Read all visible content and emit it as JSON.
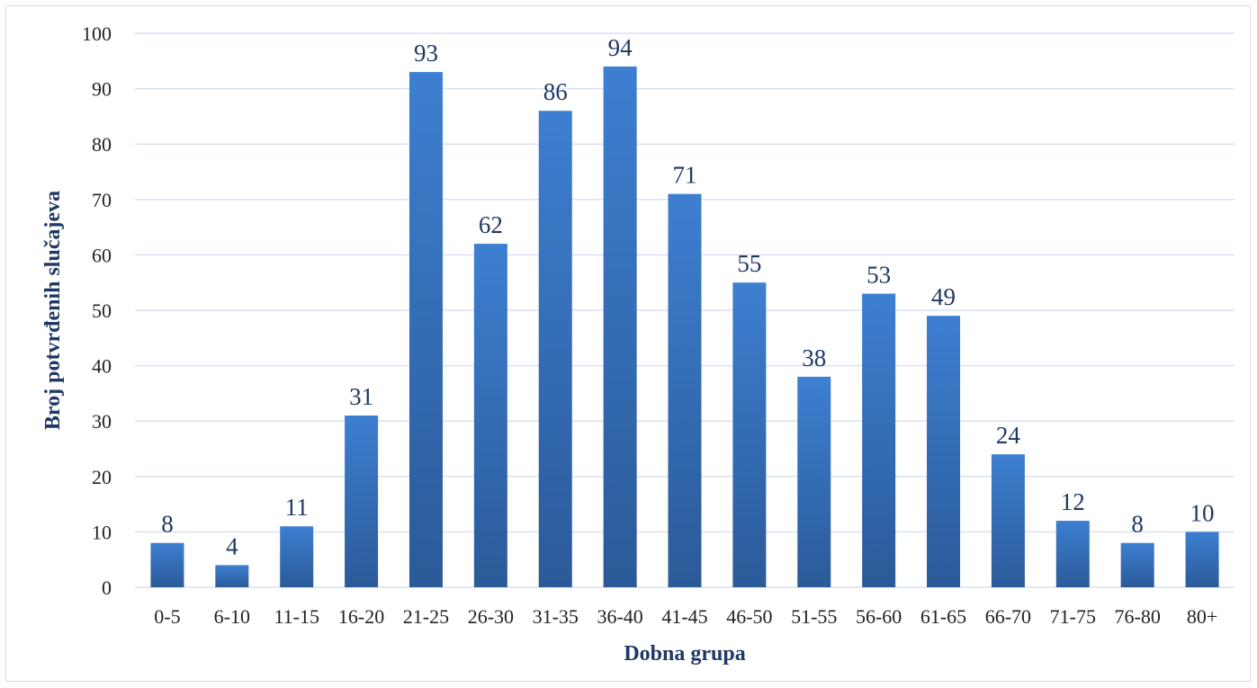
{
  "chart_data": {
    "type": "bar",
    "categories": [
      "0-5",
      "6-10",
      "11-15",
      "16-20",
      "21-25",
      "26-30",
      "31-35",
      "36-40",
      "41-45",
      "46-50",
      "51-55",
      "56-60",
      "61-65",
      "66-70",
      "71-75",
      "76-80",
      "80+"
    ],
    "values": [
      8,
      4,
      11,
      31,
      93,
      62,
      86,
      94,
      71,
      55,
      38,
      53,
      49,
      24,
      12,
      8,
      10
    ],
    "xlabel": "Dobna grupa",
    "ylabel": "Broj potvrđenih slučajeva",
    "ylim": [
      0,
      100
    ],
    "yticks": [
      0,
      10,
      20,
      30,
      40,
      50,
      60,
      70,
      80,
      90,
      100
    ],
    "grid": true,
    "data_labels": true,
    "colors": {
      "bar_top": "#3d7fd1",
      "bar_bottom": "#2b5a98",
      "grid": "#d9e1f2",
      "label": "#1f3864"
    }
  }
}
